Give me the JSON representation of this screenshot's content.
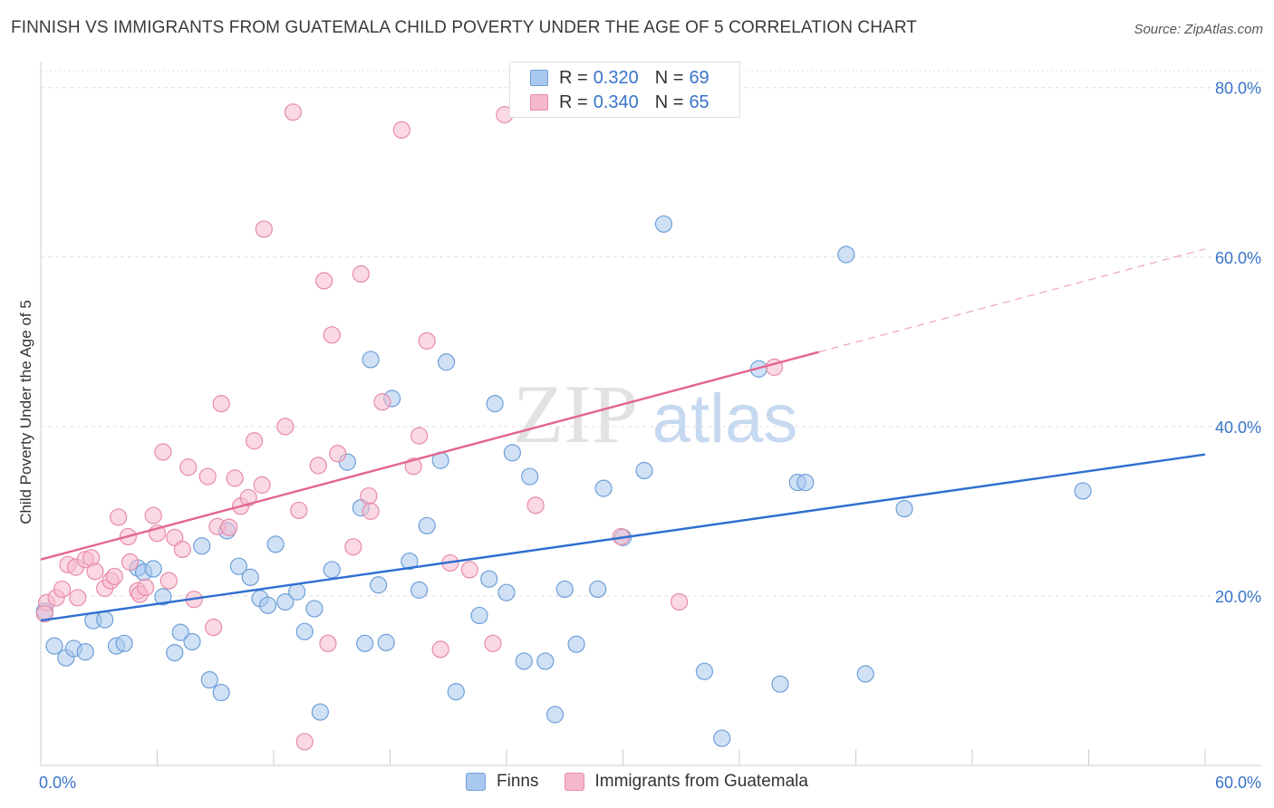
{
  "header": {
    "title": "FINNISH VS IMMIGRANTS FROM GUATEMALA CHILD POVERTY UNDER THE AGE OF 5 CORRELATION CHART",
    "source": "Source: ZipAtlas.com"
  },
  "legend": {
    "finns": {
      "r_label": "R =",
      "r_value": "0.320",
      "n_label": "N =",
      "n_value": "69"
    },
    "guatemala": {
      "r_label": "R =",
      "r_value": "0.340",
      "n_label": "N =",
      "n_value": "65"
    }
  },
  "bottom_legend": {
    "finns": "Finns",
    "guatemala": "Immigrants from Guatemala"
  },
  "watermark": {
    "zip": "ZIP",
    "atlas": "atlas"
  },
  "colors": {
    "finns_fill": "#a9c8ef",
    "finns_stroke": "#6e9fd8",
    "finns_line": "#2f6fd0",
    "guatemala_fill": "#f6b9cc",
    "guatemala_stroke": "#e88aa8",
    "guatemala_line": "#e2668f",
    "tick_label": "#3a74c9",
    "grid": "#dddddd"
  },
  "chart_data": {
    "type": "scatter",
    "title": "FINNISH VS IMMIGRANTS FROM GUATEMALA CHILD POVERTY UNDER THE AGE OF 5 CORRELATION CHART",
    "xlabel": "",
    "ylabel": "Child Poverty Under the Age of 5",
    "xlim": [
      0,
      60
    ],
    "ylim": [
      0,
      82
    ],
    "x_tick_labels": [
      "0.0%",
      "60.0%"
    ],
    "y_ticks": [
      20,
      40,
      60,
      80
    ],
    "y_tick_labels": [
      "20.0%",
      "40.0%",
      "60.0%",
      "80.0%"
    ],
    "grid": true,
    "legend_position": "top-center",
    "series": [
      {
        "name": "Finns",
        "points": [
          [
            0.2,
            18.2
          ],
          [
            0.7,
            14.1
          ],
          [
            1.3,
            12.7
          ],
          [
            1.7,
            13.8
          ],
          [
            2.3,
            13.4
          ],
          [
            2.7,
            17.1
          ],
          [
            3.3,
            17.2
          ],
          [
            3.9,
            14.1
          ],
          [
            4.3,
            14.4
          ],
          [
            5.0,
            23.3
          ],
          [
            5.3,
            22.8
          ],
          [
            5.8,
            23.2
          ],
          [
            6.3,
            19.9
          ],
          [
            6.9,
            13.3
          ],
          [
            7.2,
            15.7
          ],
          [
            7.8,
            14.6
          ],
          [
            8.3,
            25.9
          ],
          [
            8.7,
            10.1
          ],
          [
            9.3,
            8.6
          ],
          [
            9.6,
            27.7
          ],
          [
            10.2,
            23.5
          ],
          [
            10.8,
            22.2
          ],
          [
            11.3,
            19.7
          ],
          [
            11.7,
            18.9
          ],
          [
            12.1,
            26.1
          ],
          [
            12.6,
            19.3
          ],
          [
            13.2,
            20.5
          ],
          [
            13.6,
            15.8
          ],
          [
            14.1,
            18.5
          ],
          [
            14.4,
            6.3
          ],
          [
            15.0,
            23.1
          ],
          [
            15.8,
            35.8
          ],
          [
            16.5,
            30.4
          ],
          [
            16.7,
            14.4
          ],
          [
            17.0,
            47.9
          ],
          [
            17.4,
            21.3
          ],
          [
            17.8,
            14.5
          ],
          [
            18.1,
            43.3
          ],
          [
            19.0,
            24.1
          ],
          [
            19.5,
            20.7
          ],
          [
            19.9,
            28.3
          ],
          [
            20.6,
            36.0
          ],
          [
            20.9,
            47.6
          ],
          [
            21.4,
            8.7
          ],
          [
            22.6,
            17.7
          ],
          [
            23.1,
            22.0
          ],
          [
            23.4,
            42.7
          ],
          [
            24.0,
            20.4
          ],
          [
            24.3,
            36.9
          ],
          [
            24.9,
            12.3
          ],
          [
            25.2,
            34.1
          ],
          [
            26.0,
            12.3
          ],
          [
            26.5,
            6.0
          ],
          [
            27.0,
            20.8
          ],
          [
            27.6,
            14.3
          ],
          [
            28.7,
            20.8
          ],
          [
            29.0,
            32.7
          ],
          [
            30.0,
            26.9
          ],
          [
            31.1,
            34.8
          ],
          [
            32.1,
            63.9
          ],
          [
            34.2,
            11.1
          ],
          [
            35.1,
            3.2
          ],
          [
            37.0,
            46.8
          ],
          [
            38.1,
            9.6
          ],
          [
            39.0,
            33.4
          ],
          [
            39.4,
            33.4
          ],
          [
            41.5,
            60.3
          ],
          [
            42.5,
            10.8
          ],
          [
            44.5,
            30.3
          ],
          [
            53.7,
            32.4
          ]
        ]
      },
      {
        "name": "Immigrants from Guatemala",
        "points": [
          [
            0.3,
            19.2
          ],
          [
            0.8,
            19.8
          ],
          [
            1.1,
            20.8
          ],
          [
            1.4,
            23.7
          ],
          [
            1.8,
            23.4
          ],
          [
            1.9,
            19.8
          ],
          [
            2.3,
            24.3
          ],
          [
            2.6,
            24.5
          ],
          [
            2.8,
            22.9
          ],
          [
            3.3,
            20.9
          ],
          [
            3.6,
            21.8
          ],
          [
            3.8,
            22.3
          ],
          [
            4.0,
            29.3
          ],
          [
            4.5,
            27.0
          ],
          [
            4.6,
            24.0
          ],
          [
            5.0,
            20.6
          ],
          [
            5.1,
            20.2
          ],
          [
            5.4,
            21.0
          ],
          [
            5.8,
            29.5
          ],
          [
            6.0,
            27.4
          ],
          [
            6.3,
            37.0
          ],
          [
            6.6,
            21.8
          ],
          [
            6.9,
            26.9
          ],
          [
            7.3,
            25.5
          ],
          [
            7.6,
            35.2
          ],
          [
            7.9,
            19.6
          ],
          [
            8.6,
            34.1
          ],
          [
            8.9,
            16.3
          ],
          [
            9.1,
            28.2
          ],
          [
            9.3,
            42.7
          ],
          [
            9.7,
            28.1
          ],
          [
            10.0,
            33.9
          ],
          [
            10.3,
            30.6
          ],
          [
            10.7,
            31.6
          ],
          [
            11.0,
            38.3
          ],
          [
            11.4,
            33.1
          ],
          [
            11.5,
            63.3
          ],
          [
            12.6,
            40.0
          ],
          [
            13.0,
            77.1
          ],
          [
            13.3,
            30.1
          ],
          [
            13.6,
            2.8
          ],
          [
            14.3,
            35.4
          ],
          [
            14.6,
            57.2
          ],
          [
            14.8,
            14.4
          ],
          [
            15.0,
            50.8
          ],
          [
            15.3,
            36.8
          ],
          [
            16.1,
            25.8
          ],
          [
            16.5,
            58.0
          ],
          [
            16.9,
            31.8
          ],
          [
            17.0,
            30.0
          ],
          [
            17.6,
            42.9
          ],
          [
            18.6,
            75.0
          ],
          [
            19.2,
            35.3
          ],
          [
            19.5,
            38.9
          ],
          [
            19.9,
            50.1
          ],
          [
            20.6,
            13.7
          ],
          [
            21.1,
            23.9
          ],
          [
            22.1,
            23.1
          ],
          [
            23.3,
            14.4
          ],
          [
            23.9,
            76.8
          ],
          [
            25.5,
            30.7
          ],
          [
            29.9,
            27.0
          ],
          [
            32.9,
            19.3
          ],
          [
            37.8,
            47.0
          ],
          [
            0.2,
            17.9
          ]
        ]
      }
    ],
    "trend_lines": [
      {
        "series": "Finns",
        "x": [
          0,
          60
        ],
        "y": [
          17.1,
          36.7
        ]
      },
      {
        "series": "Immigrants from Guatemala",
        "x": [
          0,
          40.1
        ],
        "y": [
          24.3,
          48.8
        ]
      }
    ]
  }
}
